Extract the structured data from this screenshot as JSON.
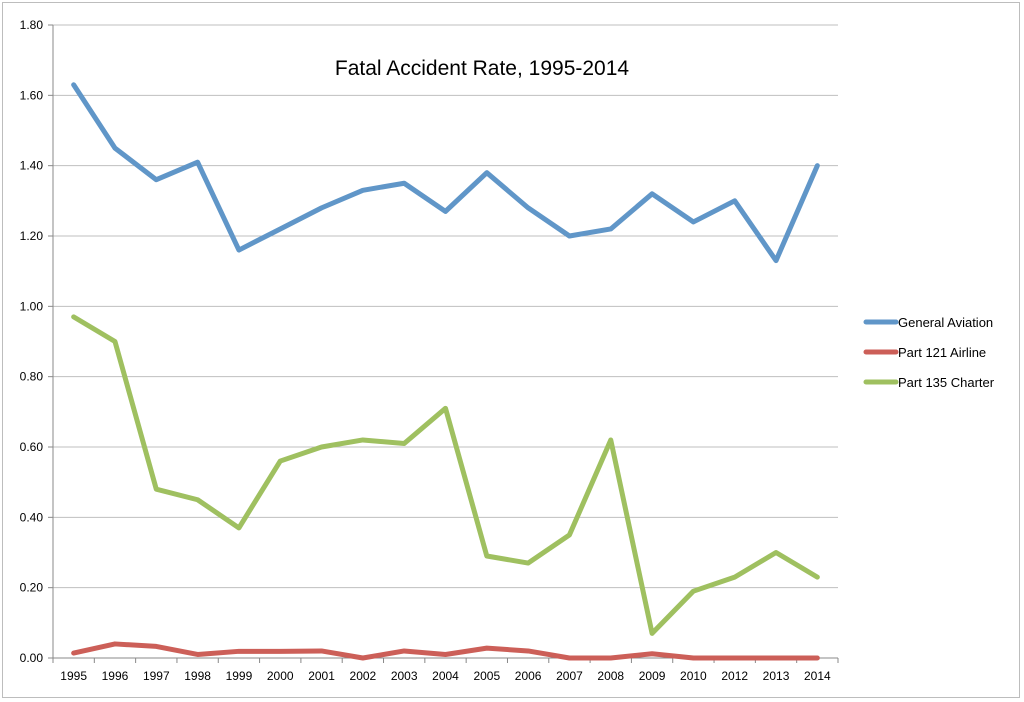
{
  "chart_data": {
    "type": "line",
    "title": "Fatal Accident Rate, 1995-2014",
    "xlabel": "",
    "ylabel": "",
    "categories": [
      "1995",
      "1996",
      "1997",
      "1998",
      "1999",
      "2000",
      "2001",
      "2002",
      "2003",
      "2004",
      "2005",
      "2006",
      "2007",
      "2008",
      "2009",
      "2010",
      "2012",
      "2013",
      "2014"
    ],
    "ylim": [
      0,
      1.8
    ],
    "yticks": [
      "0.00",
      "0.20",
      "0.40",
      "0.60",
      "0.80",
      "1.00",
      "1.20",
      "1.40",
      "1.60",
      "1.80"
    ],
    "grid": true,
    "legend_position": "right",
    "series": [
      {
        "name": "General Aviation",
        "color": "#6096c8",
        "values": [
          1.63,
          1.45,
          1.36,
          1.41,
          1.16,
          1.22,
          1.28,
          1.33,
          1.35,
          1.27,
          1.38,
          1.28,
          1.2,
          1.22,
          1.32,
          1.24,
          1.3,
          1.13,
          1.4
        ]
      },
      {
        "name": "Part 121 Airline",
        "color": "#cc5f58",
        "values": [
          0.014,
          0.04,
          0.033,
          0.01,
          0.019,
          0.019,
          0.02,
          0.0,
          0.02,
          0.01,
          0.028,
          0.02,
          0.0,
          0.0,
          0.012,
          0.0,
          0.0,
          0.0,
          0.0
        ]
      },
      {
        "name": "Part 135 Charter",
        "color": "#9fc060",
        "values": [
          0.97,
          0.9,
          0.48,
          0.45,
          0.37,
          0.56,
          0.6,
          0.62,
          0.61,
          0.71,
          0.29,
          0.27,
          0.35,
          0.62,
          0.07,
          0.19,
          0.23,
          0.3,
          0.23
        ]
      }
    ]
  }
}
